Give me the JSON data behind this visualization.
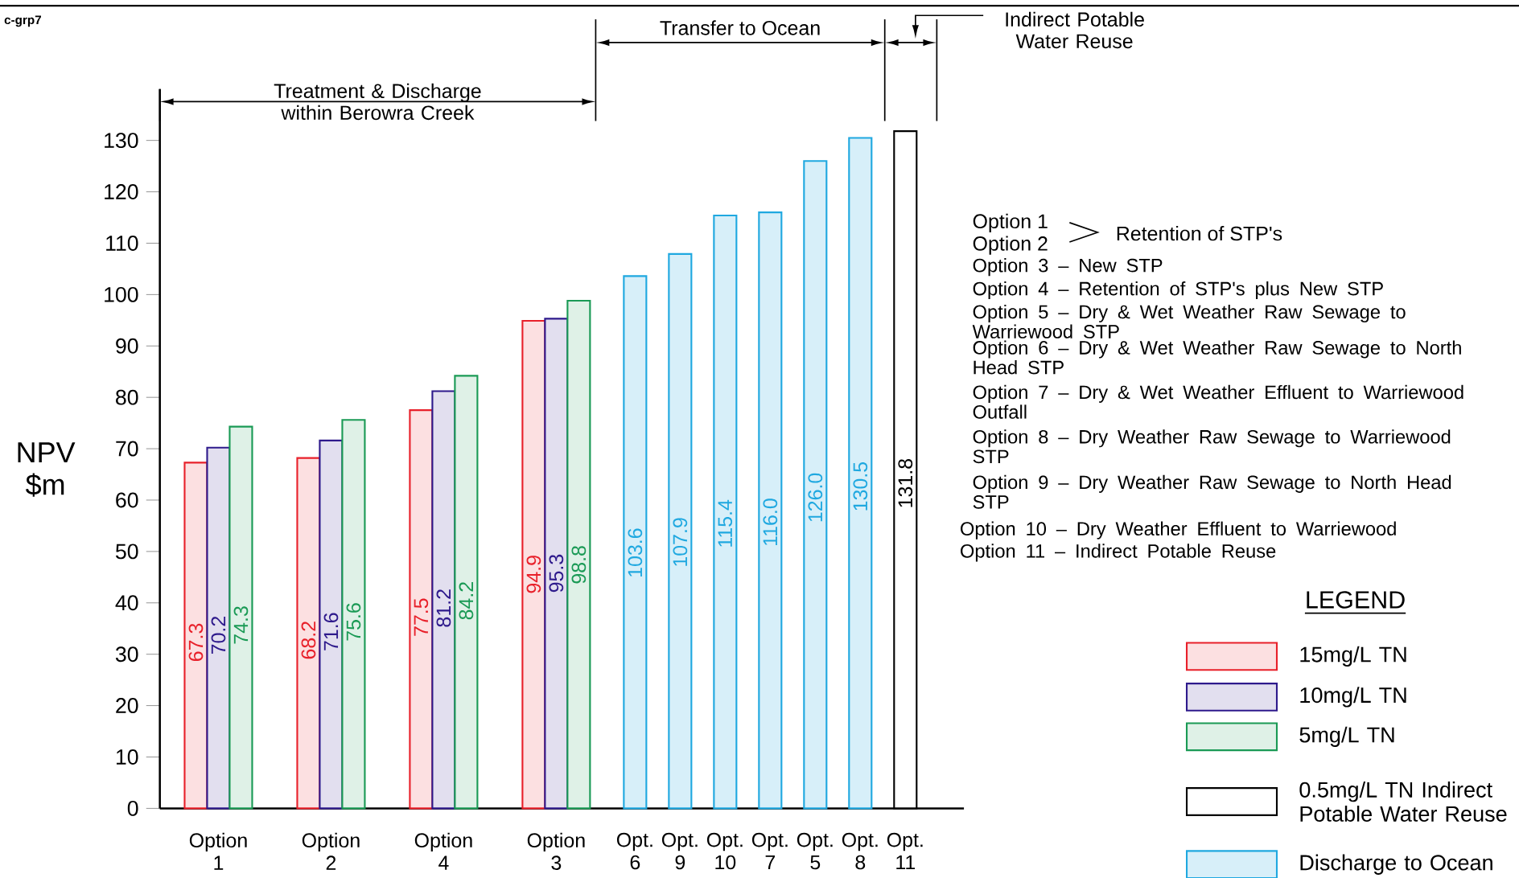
{
  "chart_data": {
    "type": "bar",
    "ylabel": "NPV $m",
    "legend_title": "LEGEND",
    "legend": "right",
    "categories": [
      "Option 1",
      "Option 2",
      "Option 4",
      "Option 3",
      "Opt. 6",
      "Opt. 9",
      "Opt. 10",
      "Opt. 7",
      "Opt. 5",
      "Opt. 8",
      "Opt. 11"
    ],
    "ylim": [
      0,
      140
    ],
    "yticks": [
      0,
      10,
      20,
      30,
      40,
      50,
      60,
      70,
      80,
      90,
      100,
      110,
      120,
      130
    ],
    "series": [
      {
        "name": "15mg/L TN",
        "color": "#e8202a",
        "values": [
          67.3,
          68.2,
          77.5,
          94.9,
          null,
          null,
          null,
          null,
          null,
          null,
          null
        ],
        "value_labels": [
          "67.3",
          "68.2",
          "77.5",
          "94.9",
          null,
          null,
          null,
          null,
          null,
          null,
          null
        ]
      },
      {
        "name": "10mg/L TN",
        "color": "#2e1a8c",
        "values": [
          70.2,
          71.6,
          81.2,
          95.3,
          null,
          null,
          null,
          null,
          null,
          null,
          null
        ],
        "value_labels": [
          "70.2",
          "71.6",
          "81.2",
          "95.3",
          null,
          null,
          null,
          null,
          null,
          null,
          null
        ]
      },
      {
        "name": "5mg/L TN",
        "color": "#1a9a55",
        "values": [
          74.3,
          75.6,
          84.2,
          98.8,
          null,
          null,
          null,
          null,
          null,
          null,
          null
        ],
        "value_labels": [
          "74.3",
          "75.6",
          "84.2",
          "98.8",
          null,
          null,
          null,
          null,
          null,
          null,
          null
        ]
      },
      {
        "name": "0.5mg/L TN Indirect Potable Water Reuse",
        "color": "#000000",
        "values": [
          null,
          null,
          null,
          null,
          null,
          null,
          null,
          null,
          null,
          null,
          131.8
        ],
        "value_labels": [
          null,
          null,
          null,
          null,
          null,
          null,
          null,
          null,
          null,
          null,
          "131.8"
        ]
      },
      {
        "name": "Discharge to Ocean",
        "color": "#1fa8e0",
        "values": [
          null,
          null,
          null,
          null,
          103.6,
          107.9,
          115.4,
          116.0,
          126.0,
          130.5,
          null
        ],
        "value_labels": [
          null,
          null,
          null,
          null,
          "103.6",
          "107.9",
          "115.4",
          "116.0",
          "126.0",
          "130.5",
          null
        ]
      }
    ],
    "annotations": [
      "c-grp7",
      "Treatment & Discharge within Berowra Creek",
      "Transfer to Ocean",
      "Indirect Potable Water Reuse",
      "Option 1",
      "Option 2",
      "Retention of STP's",
      "Option 3 – New STP",
      "Option 4 – Retention of STP's plus New STP",
      "Option 5 – Dry & Wet Weather Raw Sewage to Warriewood STP",
      "Option 6 – Dry & Wet Weather Raw Sewage to North Head STP",
      "Option 7 – Dry & Wet Weather Effluent to Warriewood Outfall",
      "Option 8 – Dry Weather Raw Sewage to Warriewood STP",
      "Option 9 – Dry Weather Raw Sewage to North Head STP",
      "Option 10 – Dry Weather Effluent to Warriewood",
      "Option 11 – Indirect Potable Reuse"
    ]
  }
}
